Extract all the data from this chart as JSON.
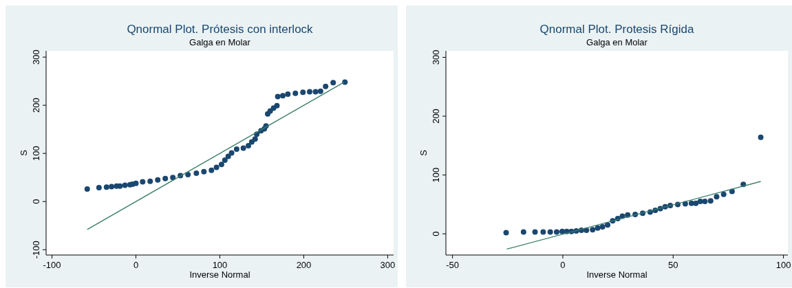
{
  "chart_data": [
    {
      "type": "scatter",
      "title": "Qnormal Plot. Prótesis con interlock",
      "subtitle": "Galga en Molar",
      "xlabel": "Inverse Normal",
      "ylabel": "S",
      "xlim": [
        -107,
        307
      ],
      "ylim": [
        -111,
        313
      ],
      "xticks": [
        -100,
        0,
        100,
        200,
        300
      ],
      "yticks": [
        -100,
        0,
        100,
        200,
        300
      ],
      "series": [
        {
          "marker": "circle",
          "color": "#1a476f",
          "x": [
            -58,
            -44,
            -35,
            -29,
            -23,
            -19,
            -13,
            -7,
            -4,
            0,
            8,
            17,
            26,
            35,
            44,
            53,
            62,
            72,
            81,
            90,
            96,
            102,
            106,
            110,
            114,
            120,
            128,
            134,
            138,
            142,
            144,
            149,
            153,
            155,
            157,
            160,
            164,
            168,
            169,
            175,
            181,
            190,
            199,
            207,
            214,
            220,
            226,
            235,
            249
          ],
          "values": [
            26,
            29,
            30,
            31,
            32,
            32,
            34,
            35,
            36,
            38,
            41,
            42,
            45,
            48,
            50,
            54,
            56,
            59,
            62,
            65,
            71,
            77,
            86,
            94,
            101,
            109,
            111,
            116,
            124,
            130,
            140,
            147,
            151,
            157,
            182,
            188,
            194,
            199,
            218,
            220,
            223,
            225,
            227,
            228,
            228,
            229,
            239,
            247,
            248
          ]
        },
        {
          "type": "line",
          "marker": "none",
          "color": "#3a7e6a",
          "x": [
            -58,
            248
          ],
          "values": [
            -58,
            248
          ]
        }
      ]
    },
    {
      "type": "scatter",
      "title": "Qnormal Plot. Protesis Rígida",
      "subtitle": "Galga en Molar",
      "xlabel": "Inverse Normal",
      "ylabel": "S",
      "xlim": [
        -53,
        102
      ],
      "ylim": [
        -36,
        311
      ],
      "xticks": [
        -50,
        0,
        50,
        100
      ],
      "yticks": [
        0,
        100,
        200,
        300
      ],
      "series": [
        {
          "marker": "circle",
          "color": "#1a476f",
          "x": [
            -25.7,
            -17.8,
            -12.6,
            -8.9,
            -5.7,
            -2.8,
            -0.3,
            1.8,
            3.9,
            6.1,
            8.4,
            10.7,
            13.5,
            15.8,
            18,
            20.3,
            22.6,
            24.9,
            27,
            29.4,
            32.8,
            36.2,
            39.6,
            41.9,
            44.2,
            46.4,
            48.7,
            52.1,
            55.5,
            58.3,
            60.3,
            62.3,
            64.4,
            67,
            69.7,
            72.9,
            76.7,
            81.8,
            89.7
          ],
          "values": [
            2,
            3,
            3,
            3,
            3,
            3,
            4,
            4,
            4,
            5,
            6,
            6,
            7,
            10,
            12,
            15,
            22,
            26,
            30,
            32,
            33,
            35,
            37,
            40,
            43,
            46,
            48,
            50,
            51,
            52,
            52,
            55,
            55,
            56,
            63,
            67,
            72,
            84,
            164
          ]
        },
        {
          "type": "line",
          "marker": "none",
          "color": "#3a7e6a",
          "x": [
            -25.4,
            89.7
          ],
          "values": [
            -26,
            89
          ]
        }
      ]
    }
  ]
}
